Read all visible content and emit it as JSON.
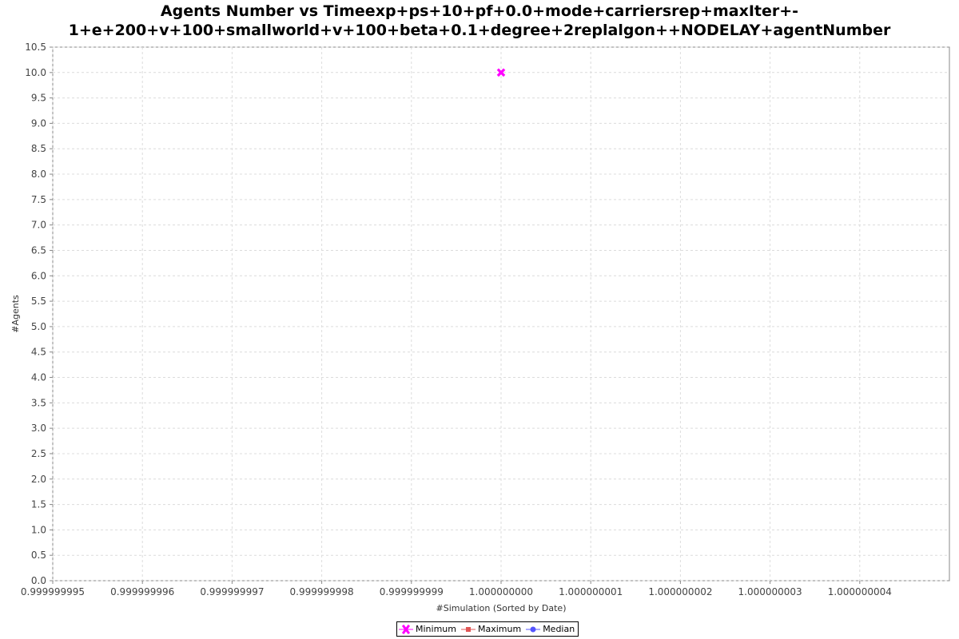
{
  "chart_data": {
    "type": "scatter",
    "title": "Agents Number vs Timeexp+ps+10+pf+0.0+mode+carriersrep+maxIter+-1+e+200+v+100+smallworld+v+100+beta+0.1+degree+2replalgon++NODELAY+agentNumber",
    "title_lines": [
      "Agents Number vs Timeexp+ps+10+pf+0.0+mode+carriersrep+maxIter+-",
      "1+e+200+v+100+smallworld+v+100+beta+0.1+degree+2replalgon++NODELAY+agentNumber"
    ],
    "xlabel": "#Simulation (Sorted by Date)",
    "ylabel": "#Agents",
    "xlim": [
      0.999999995,
      1.000000005
    ],
    "ylim": [
      0,
      10.5
    ],
    "x_ticks": [
      "0.999999995",
      "0.999999996",
      "0.999999997",
      "0.999999998",
      "0.999999999",
      "1.000000000",
      "1.000000001",
      "1.000000002",
      "1.000000003",
      "1.000000004"
    ],
    "y_ticks": [
      "0.0",
      "0.5",
      "1.0",
      "1.5",
      "2.0",
      "2.5",
      "3.0",
      "3.5",
      "4.0",
      "4.5",
      "5.0",
      "5.5",
      "6.0",
      "6.5",
      "7.0",
      "7.5",
      "8.0",
      "8.5",
      "9.0",
      "9.5",
      "10.0",
      "10.5"
    ],
    "grid": true,
    "legend_position": "bottom-center",
    "series": [
      {
        "name": "Minimum",
        "color": "#ff00ff",
        "marker": "x",
        "points": [
          [
            1.0,
            10.0
          ]
        ]
      },
      {
        "name": "Maximum",
        "color": "#e05555",
        "marker": "square",
        "points": []
      },
      {
        "name": "Median",
        "color": "#5555ff",
        "marker": "circle",
        "points": []
      }
    ]
  }
}
